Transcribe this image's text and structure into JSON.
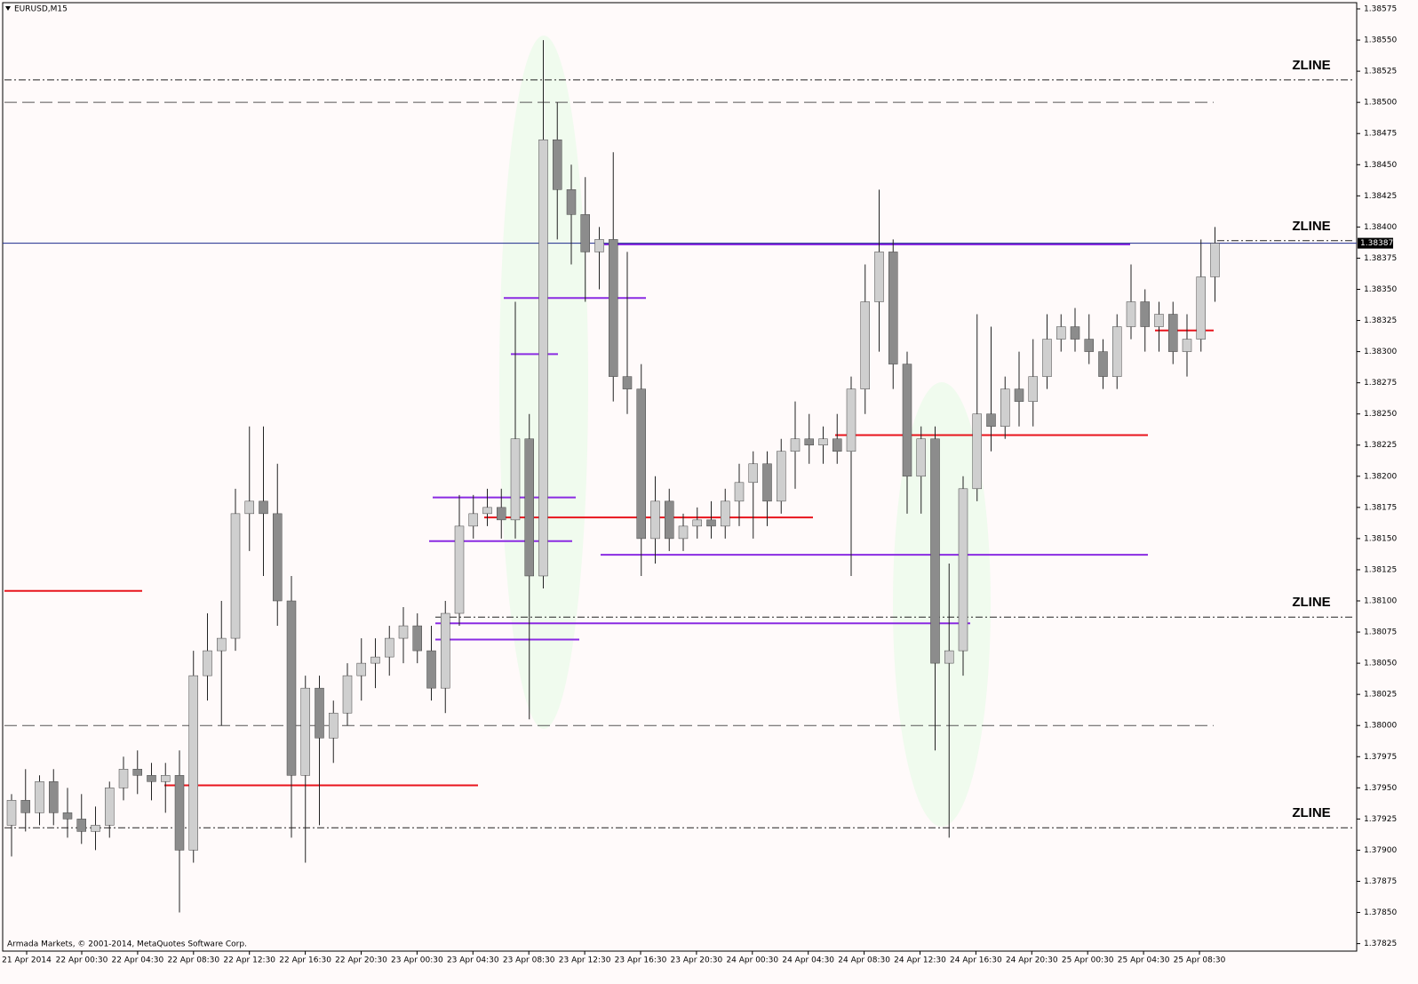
{
  "title": "EURUSD,M15",
  "footer": "Armada Markets, © 2001-2014, MetaQuotes Software Corp.",
  "chart_data": {
    "type": "candlestick",
    "ohlc": [
      [
        1.3792,
        1.37945,
        1.37895,
        1.3794
      ],
      [
        1.3794,
        1.37965,
        1.37915,
        1.3793
      ],
      [
        1.3793,
        1.3796,
        1.3792,
        1.37955
      ],
      [
        1.37955,
        1.37965,
        1.3792,
        1.3793
      ],
      [
        1.3793,
        1.3795,
        1.3791,
        1.37925
      ],
      [
        1.37925,
        1.37945,
        1.37905,
        1.37915
      ],
      [
        1.37915,
        1.37935,
        1.379,
        1.3792
      ],
      [
        1.3792,
        1.37955,
        1.3791,
        1.3795
      ],
      [
        1.3795,
        1.37975,
        1.3794,
        1.37965
      ],
      [
        1.37965,
        1.3798,
        1.37945,
        1.3796
      ],
      [
        1.3796,
        1.3797,
        1.3794,
        1.37955
      ],
      [
        1.37955,
        1.3797,
        1.3793,
        1.3796
      ],
      [
        1.3796,
        1.3798,
        1.3785,
        1.379
      ],
      [
        1.379,
        1.3806,
        1.3789,
        1.3804
      ],
      [
        1.3804,
        1.3809,
        1.3802,
        1.3806
      ],
      [
        1.3806,
        1.381,
        1.38,
        1.3807
      ],
      [
        1.3807,
        1.3819,
        1.3806,
        1.3817
      ],
      [
        1.3817,
        1.3824,
        1.3814,
        1.3818
      ],
      [
        1.3818,
        1.3824,
        1.3812,
        1.3817
      ],
      [
        1.3817,
        1.3821,
        1.3808,
        1.381
      ],
      [
        1.381,
        1.3812,
        1.3791,
        1.3796
      ],
      [
        1.3796,
        1.3804,
        1.3789,
        1.3803
      ],
      [
        1.3803,
        1.3804,
        1.3792,
        1.3799
      ],
      [
        1.3799,
        1.3802,
        1.3797,
        1.3801
      ],
      [
        1.3801,
        1.3805,
        1.38,
        1.3804
      ],
      [
        1.3804,
        1.3807,
        1.3802,
        1.3805
      ],
      [
        1.3805,
        1.3807,
        1.3803,
        1.38055
      ],
      [
        1.38055,
        1.3808,
        1.3804,
        1.3807
      ],
      [
        1.3807,
        1.38095,
        1.3805,
        1.3808
      ],
      [
        1.3808,
        1.3809,
        1.3805,
        1.3806
      ],
      [
        1.3806,
        1.3808,
        1.3802,
        1.3803
      ],
      [
        1.3803,
        1.381,
        1.3801,
        1.3809
      ],
      [
        1.3809,
        1.38185,
        1.3808,
        1.3816
      ],
      [
        1.3816,
        1.38185,
        1.3815,
        1.3817
      ],
      [
        1.3817,
        1.3819,
        1.3816,
        1.38175
      ],
      [
        1.38175,
        1.3819,
        1.3815,
        1.38165
      ],
      [
        1.38165,
        1.3834,
        1.3815,
        1.3823
      ],
      [
        1.3823,
        1.3825,
        1.38005,
        1.3812
      ],
      [
        1.3812,
        1.3855,
        1.3811,
        1.3847
      ],
      [
        1.3847,
        1.385,
        1.3839,
        1.3843
      ],
      [
        1.3843,
        1.3845,
        1.3837,
        1.3841
      ],
      [
        1.3841,
        1.3844,
        1.3834,
        1.3838
      ],
      [
        1.3838,
        1.384,
        1.3835,
        1.3839
      ],
      [
        1.3839,
        1.3846,
        1.3826,
        1.3828
      ],
      [
        1.3828,
        1.3838,
        1.3825,
        1.3827
      ],
      [
        1.3827,
        1.3829,
        1.3812,
        1.3815
      ],
      [
        1.3815,
        1.382,
        1.3813,
        1.3818
      ],
      [
        1.3818,
        1.3819,
        1.3814,
        1.3815
      ],
      [
        1.3815,
        1.3817,
        1.3814,
        1.3816
      ],
      [
        1.3816,
        1.38175,
        1.3815,
        1.38165
      ],
      [
        1.38165,
        1.3818,
        1.3815,
        1.3816
      ],
      [
        1.3816,
        1.3819,
        1.3815,
        1.3818
      ],
      [
        1.3818,
        1.3821,
        1.3816,
        1.38195
      ],
      [
        1.38195,
        1.3822,
        1.3815,
        1.3821
      ],
      [
        1.3821,
        1.3822,
        1.3816,
        1.3818
      ],
      [
        1.3818,
        1.3823,
        1.3817,
        1.3822
      ],
      [
        1.3822,
        1.3826,
        1.3819,
        1.3823
      ],
      [
        1.3823,
        1.3825,
        1.3821,
        1.38225
      ],
      [
        1.38225,
        1.3824,
        1.3821,
        1.3823
      ],
      [
        1.3823,
        1.3825,
        1.3821,
        1.3822
      ],
      [
        1.3822,
        1.3828,
        1.3812,
        1.3827
      ],
      [
        1.3827,
        1.3837,
        1.3825,
        1.3834
      ],
      [
        1.3834,
        1.3843,
        1.383,
        1.3838
      ],
      [
        1.3838,
        1.3839,
        1.3827,
        1.3829
      ],
      [
        1.3829,
        1.383,
        1.3817,
        1.382
      ],
      [
        1.382,
        1.3824,
        1.3817,
        1.3823
      ],
      [
        1.3823,
        1.3824,
        1.3798,
        1.3805
      ],
      [
        1.3805,
        1.3813,
        1.3791,
        1.3806
      ],
      [
        1.3806,
        1.382,
        1.3804,
        1.3819
      ],
      [
        1.3819,
        1.3833,
        1.3818,
        1.3825
      ],
      [
        1.3825,
        1.3832,
        1.3822,
        1.3824
      ],
      [
        1.3824,
        1.3828,
        1.3823,
        1.3827
      ],
      [
        1.3827,
        1.383,
        1.3824,
        1.3826
      ],
      [
        1.3826,
        1.3831,
        1.3824,
        1.3828
      ],
      [
        1.3828,
        1.3833,
        1.3827,
        1.3831
      ],
      [
        1.3831,
        1.3833,
        1.383,
        1.3832
      ],
      [
        1.3832,
        1.38335,
        1.383,
        1.3831
      ],
      [
        1.3831,
        1.3833,
        1.3829,
        1.383
      ],
      [
        1.383,
        1.3831,
        1.3827,
        1.3828
      ],
      [
        1.3828,
        1.3833,
        1.3827,
        1.3832
      ],
      [
        1.3832,
        1.3837,
        1.3831,
        1.3834
      ],
      [
        1.3834,
        1.3835,
        1.383,
        1.3832
      ],
      [
        1.3832,
        1.3834,
        1.383,
        1.3833
      ],
      [
        1.3833,
        1.3834,
        1.3829,
        1.383
      ],
      [
        1.383,
        1.3833,
        1.3828,
        1.3831
      ],
      [
        1.3831,
        1.3839,
        1.383,
        1.3836
      ],
      [
        1.3836,
        1.384,
        1.3834,
        1.38387
      ]
    ],
    "x_labels": [
      "21 Apr 2014",
      "22 Apr 00:30",
      "22 Apr 04:30",
      "22 Apr 08:30",
      "22 Apr 12:30",
      "22 Apr 16:30",
      "22 Apr 20:30",
      "23 Apr 00:30",
      "23 Apr 04:30",
      "23 Apr 08:30",
      "23 Apr 12:30",
      "23 Apr 16:30",
      "23 Apr 20:30",
      "24 Apr 00:30",
      "24 Apr 04:30",
      "24 Apr 08:30",
      "24 Apr 12:30",
      "24 Apr 16:30",
      "24 Apr 20:30",
      "25 Apr 00:30",
      "25 Apr 04:30",
      "25 Apr 08:30"
    ],
    "ylim": [
      1.37819,
      1.3858
    ],
    "yticks": [
      1.38575,
      {
        "value": 1.3855,
        "label": "1.38550"
      },
      1.38525,
      {
        "value": 1.385,
        "label": "1.38500"
      },
      1.38475,
      {
        "value": 1.3845,
        "label": "1.38450"
      },
      1.38425,
      {
        "value": 1.384,
        "label": "1.38400"
      },
      1.38375,
      {
        "value": 1.3835,
        "label": "1.38350"
      },
      1.38325,
      {
        "value": 1.383,
        "label": "1.38300"
      },
      1.38275,
      {
        "value": 1.3825,
        "label": "1.38250"
      },
      1.38225,
      {
        "value": 1.382,
        "label": "1.38200"
      },
      1.38175,
      {
        "value": 1.3815,
        "label": "1.38150"
      },
      1.38125,
      {
        "value": 1.381,
        "label": "1.38100"
      },
      1.38075,
      {
        "value": 1.3805,
        "label": "1.38050"
      },
      1.38025,
      {
        "value": 1.38,
        "label": "1.38000"
      },
      1.37975,
      {
        "value": 1.3795,
        "label": "1.37950"
      },
      1.37925,
      {
        "value": 1.379,
        "label": "1.37900"
      },
      1.37875,
      {
        "value": 1.3785,
        "label": "1.37850"
      },
      1.37825
    ],
    "last_price": 1.38387,
    "zline_label": "ZLINE",
    "zlines": [
      1.38518,
      1.38389,
      1.38087,
      1.37918
    ],
    "red_levels": [
      1.38108,
      1.37952,
      1.38167,
      1.38233,
      1.38317
    ],
    "purple_levels": [
      1.38343,
      1.38298,
      1.38183,
      1.38148,
      1.38137,
      1.38082,
      1.38069,
      1.38386
    ],
    "reference_levels": [
      1.385,
      1.38
    ],
    "up_color": "#cfcfcf",
    "down_color": "#8c8c8c",
    "red_color": "#e8141c",
    "purple_color": "#8a2be2",
    "price_line_color": "#1c2a8c"
  }
}
